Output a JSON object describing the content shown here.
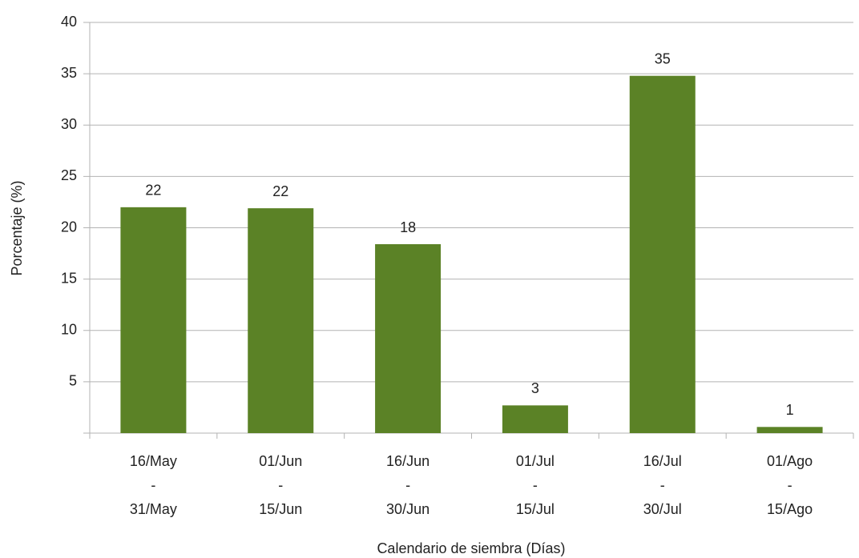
{
  "chart_data": {
    "type": "bar",
    "x_label": "Calendario de siembra (Días)",
    "y_label": "Porcentaje (%)",
    "categories": [
      [
        "16/May",
        "-",
        "31/May"
      ],
      [
        "01/Jun",
        "-",
        "15/Jun"
      ],
      [
        "16/Jun",
        "-",
        "30/Jun"
      ],
      [
        "01/Jul",
        "-",
        "15/Jul"
      ],
      [
        "16/Jul",
        "-",
        "30/Jul"
      ],
      [
        "01/Ago",
        "-",
        "15/Ago"
      ]
    ],
    "values": [
      22,
      21.9,
      18.4,
      2.7,
      34.8,
      0.6
    ],
    "value_labels": [
      "22",
      "22",
      "18",
      "3",
      "35",
      "1"
    ],
    "color": "#5b8226",
    "ylim": [
      0,
      40
    ],
    "yticks": [
      5,
      10,
      15,
      20,
      25,
      30,
      35,
      40
    ],
    "grid": true
  }
}
